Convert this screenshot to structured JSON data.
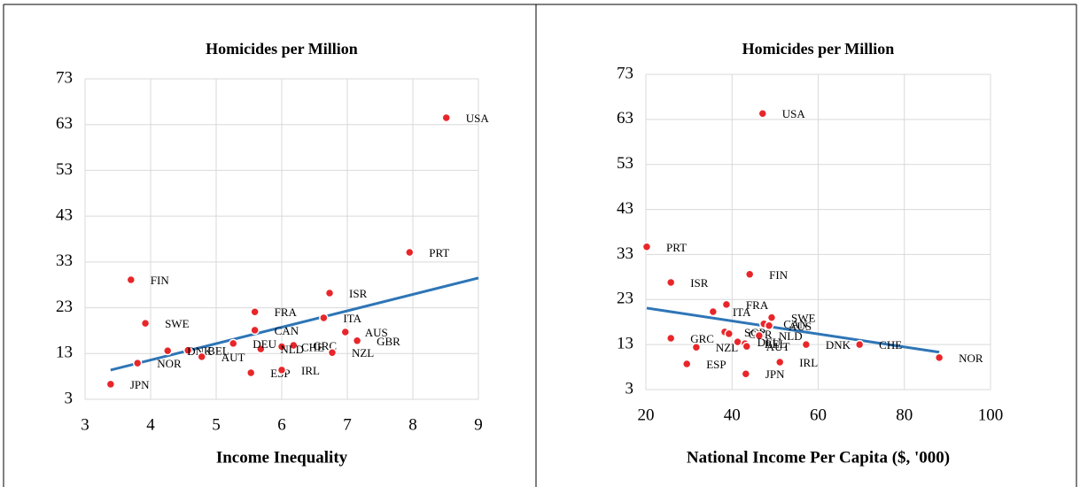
{
  "chart_data": [
    {
      "type": "scatter",
      "title": "Homicides per Million",
      "xlabel": "Income Inequality",
      "xlim": [
        3,
        9
      ],
      "xticks": [
        3,
        4,
        5,
        6,
        7,
        8,
        9
      ],
      "ylim": [
        3,
        73
      ],
      "yticks": [
        3,
        13,
        23,
        33,
        43,
        53,
        63,
        73
      ],
      "grid": true,
      "color": "#e8262a",
      "labels": [
        "USA",
        "PRT",
        "FIN",
        "ISR",
        "FRA",
        "SWE",
        "ITA",
        "CAN",
        "AUS",
        "GBR",
        "GRC",
        "NZL",
        "CHE",
        "NLD",
        "DEU",
        "BEL",
        "DNK",
        "AUT",
        "NOR",
        "JPN",
        "ESP",
        "IRL"
      ],
      "x": [
        8.51,
        7.95,
        3.7,
        6.73,
        5.59,
        3.92,
        6.64,
        5.59,
        6.97,
        7.15,
        6.18,
        6.77,
        6.0,
        5.68,
        5.26,
        4.57,
        4.26,
        4.78,
        3.8,
        3.39,
        5.53,
        6.0
      ],
      "y": [
        64.5,
        35.1,
        29.1,
        26.2,
        22.1,
        19.6,
        20.8,
        18.1,
        17.7,
        15.8,
        14.8,
        13.2,
        14.5,
        14.0,
        15.2,
        13.7,
        13.6,
        12.3,
        10.9,
        6.3,
        8.8,
        9.4
      ],
      "trendline": {
        "color": "#2e75b6",
        "x": [
          3.39,
          9
        ],
        "y": [
          9.4,
          29.5
        ]
      }
    },
    {
      "type": "scatter",
      "title": "Homicides per Million",
      "xlabel": "National Income Per Capita ($, '000)",
      "xlim": [
        20,
        100
      ],
      "xticks": [
        20,
        40,
        60,
        80,
        100
      ],
      "ylim": [
        3,
        73
      ],
      "yticks": [
        3,
        13,
        23,
        33,
        43,
        53,
        63,
        73
      ],
      "grid": true,
      "color": "#e8262a",
      "labels": [
        "USA",
        "PRT",
        "FIN",
        "ISR",
        "FRA",
        "ITA",
        "SWE",
        "CAN",
        "AUS",
        "SGP",
        "GBR",
        "NLD",
        "DNK",
        "CHE",
        "NOR",
        "GRC",
        "NZL",
        "DEU",
        "BEL",
        "AUT",
        "IRL",
        "ESP",
        "JPN"
      ],
      "x": [
        47.1,
        20.2,
        44.1,
        25.8,
        38.7,
        35.6,
        49.2,
        47.4,
        48.6,
        38.3,
        39.3,
        46.3,
        57.2,
        69.6,
        88.1,
        25.8,
        31.7,
        41.3,
        43.0,
        43.4,
        51.1,
        29.5,
        43.2
      ],
      "y": [
        64.3,
        34.7,
        28.6,
        26.8,
        21.9,
        20.3,
        19.0,
        17.6,
        17.2,
        15.8,
        15.4,
        15.0,
        13.0,
        13.0,
        10.1,
        14.4,
        12.4,
        13.6,
        13.2,
        12.6,
        9.1,
        8.7,
        6.5
      ],
      "trendline": {
        "color": "#2e75b6",
        "x": [
          20.2,
          88.1
        ],
        "y": [
          21.1,
          11.3
        ]
      }
    }
  ]
}
